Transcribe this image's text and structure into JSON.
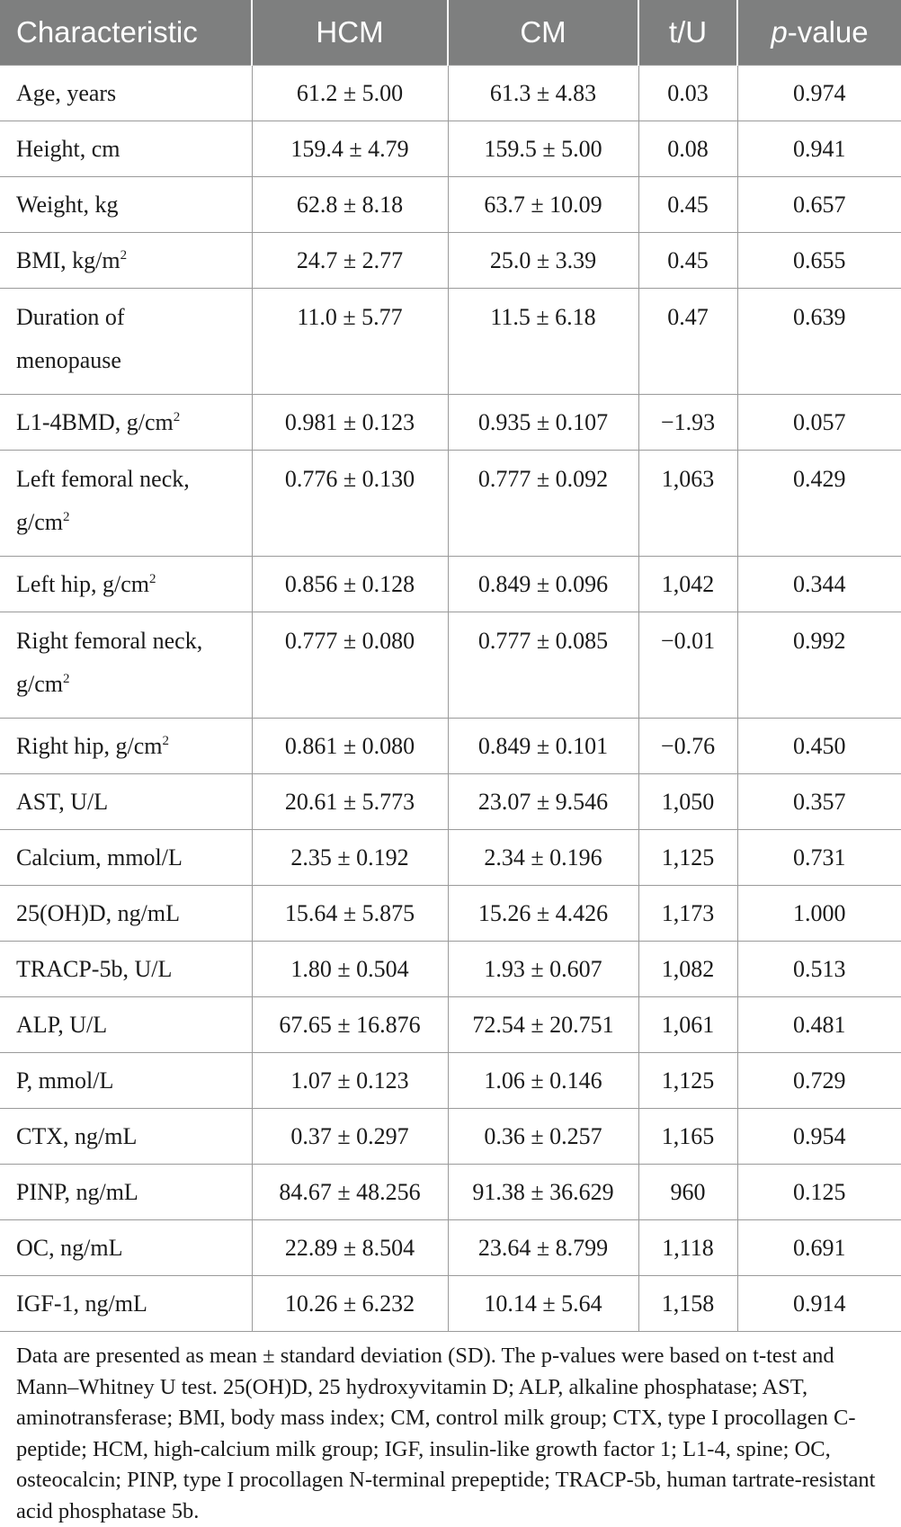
{
  "table": {
    "headers": [
      "Characteristic",
      "HCM",
      "CM",
      "t/U",
      "p-value"
    ],
    "header_p_italic": "p",
    "header_p_rest": "-value",
    "rows": [
      {
        "label": "Age, years",
        "sup": "",
        "label2": "",
        "hcm": "61.2 ± 5.00",
        "cm": "61.3 ± 4.83",
        "tu": "0.03",
        "p": "0.974"
      },
      {
        "label": "Height, cm",
        "sup": "",
        "label2": "",
        "hcm": "159.4 ± 4.79",
        "cm": "159.5 ± 5.00",
        "tu": "0.08",
        "p": "0.941"
      },
      {
        "label": "Weight, kg",
        "sup": "",
        "label2": "",
        "hcm": "62.8 ± 8.18",
        "cm": "63.7 ± 10.09",
        "tu": "0.45",
        "p": "0.657"
      },
      {
        "label": "BMI, kg/m",
        "sup": "2",
        "label2": "",
        "hcm": "24.7 ± 2.77",
        "cm": "25.0 ± 3.39",
        "tu": "0.45",
        "p": "0.655"
      },
      {
        "label": "Duration of",
        "sup": "",
        "label2": "menopause",
        "hcm": "11.0 ± 5.77",
        "cm": "11.5 ± 6.18",
        "tu": "0.47",
        "p": "0.639"
      },
      {
        "label": "L1-4BMD, g/cm",
        "sup": "2",
        "label2": "",
        "hcm": "0.981 ± 0.123",
        "cm": "0.935 ± 0.107",
        "tu": "−1.93",
        "p": "0.057"
      },
      {
        "label": "Left femoral neck,",
        "sup": "",
        "label2": "g/cm",
        "sup2": "2",
        "hcm": "0.776 ± 0.130",
        "cm": "0.777 ± 0.092",
        "tu": "1,063",
        "p": "0.429"
      },
      {
        "label": "Left hip, g/cm",
        "sup": "2",
        "label2": "",
        "hcm": "0.856 ± 0.128",
        "cm": "0.849 ± 0.096",
        "tu": "1,042",
        "p": "0.344"
      },
      {
        "label": "Right femoral neck,",
        "sup": "",
        "label2": "g/cm",
        "sup2": "2",
        "hcm": "0.777 ± 0.080",
        "cm": "0.777 ± 0.085",
        "tu": "−0.01",
        "p": "0.992"
      },
      {
        "label": "Right hip, g/cm",
        "sup": "2",
        "label2": "",
        "hcm": "0.861 ± 0.080",
        "cm": "0.849 ± 0.101",
        "tu": "−0.76",
        "p": "0.450"
      },
      {
        "label": "AST, U/L",
        "sup": "",
        "label2": "",
        "hcm": "20.61 ± 5.773",
        "cm": "23.07 ± 9.546",
        "tu": "1,050",
        "p": "0.357"
      },
      {
        "label": "Calcium, mmol/L",
        "sup": "",
        "label2": "",
        "hcm": "2.35 ± 0.192",
        "cm": "2.34 ± 0.196",
        "tu": "1,125",
        "p": "0.731"
      },
      {
        "label": "25(OH)D, ng/mL",
        "sup": "",
        "label2": "",
        "hcm": "15.64 ± 5.875",
        "cm": "15.26 ± 4.426",
        "tu": "1,173",
        "p": "1.000"
      },
      {
        "label": "TRACP-5b, U/L",
        "sup": "",
        "label2": "",
        "hcm": "1.80 ± 0.504",
        "cm": "1.93 ± 0.607",
        "tu": "1,082",
        "p": "0.513"
      },
      {
        "label": "ALP, U/L",
        "sup": "",
        "label2": "",
        "hcm": "67.65 ± 16.876",
        "cm": "72.54 ± 20.751",
        "tu": "1,061",
        "p": "0.481"
      },
      {
        "label": "P, mmol/L",
        "sup": "",
        "label2": "",
        "hcm": "1.07 ± 0.123",
        "cm": "1.06 ± 0.146",
        "tu": "1,125",
        "p": "0.729"
      },
      {
        "label": "CTX, ng/mL",
        "sup": "",
        "label2": "",
        "hcm": "0.37 ± 0.297",
        "cm": "0.36 ± 0.257",
        "tu": "1,165",
        "p": "0.954"
      },
      {
        "label": "PINP, ng/mL",
        "sup": "",
        "label2": "",
        "hcm": "84.67 ± 48.256",
        "cm": "91.38 ± 36.629",
        "tu": "960",
        "p": "0.125"
      },
      {
        "label": "OC, ng/mL",
        "sup": "",
        "label2": "",
        "hcm": "22.89 ± 8.504",
        "cm": "23.64 ± 8.799",
        "tu": "1,118",
        "p": "0.691"
      },
      {
        "label": "IGF-1, ng/mL",
        "sup": "",
        "label2": "",
        "hcm": "10.26 ± 6.232",
        "cm": "10.14 ± 5.64",
        "tu": "1,158",
        "p": "0.914"
      }
    ]
  },
  "footnote": "Data are presented as mean ± standard deviation (SD). The p-values were based on t-test and Mann–Whitney U test. 25(OH)D, 25 hydroxyvitamin D; ALP, alkaline phosphatase; AST, aminotransferase; BMI, body mass index; CM, control milk group; CTX, type I procollagen C-peptide; HCM, high-calcium milk group; IGF, insulin-like growth factor 1; L1-4, spine; OC, osteocalcin; PINP, type I procollagen N-terminal prepeptide; TRACP-5b, human tartrate-resistant acid phosphatase 5b."
}
